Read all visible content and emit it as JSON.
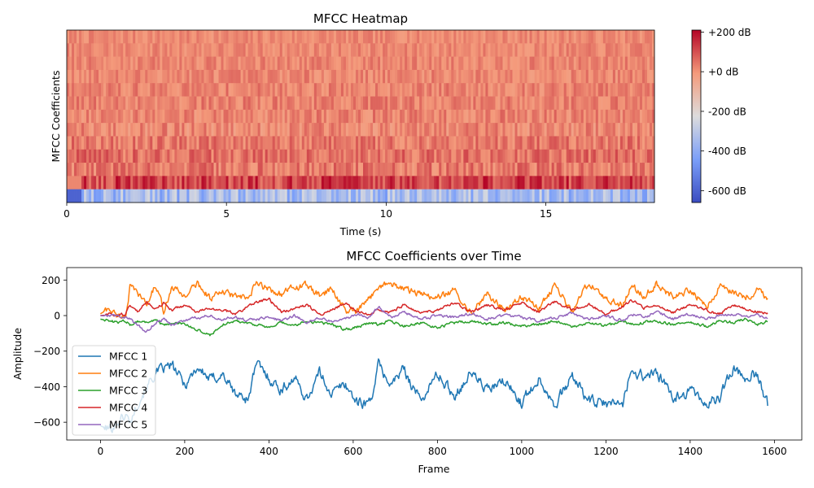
{
  "chart_data": [
    {
      "type": "heatmap",
      "title": "MFCC Heatmap",
      "xlabel": "Time (s)",
      "ylabel": "MFCC Coefficients",
      "xlim": [
        0,
        18.4
      ],
      "xticks": [
        0,
        5,
        10,
        15
      ],
      "xtick_labels": [
        "0",
        "5",
        "10",
        "15"
      ],
      "n_rows": 13,
      "n_frames": 1585,
      "colorbar": {
        "range": [
          -660,
          210
        ],
        "ticks": [
          200,
          0,
          -200,
          -400,
          -600
        ],
        "labels": [
          "+200 dB",
          "+0 dB",
          "-200 dB",
          "-400 dB",
          "-600 dB"
        ],
        "colormap": "coolwarm"
      },
      "row_levels_top_to_bottom": [
        15,
        18,
        22,
        20,
        25,
        28,
        24,
        18,
        40,
        55,
        40,
        120,
        -350
      ],
      "grid": false
    },
    {
      "type": "line",
      "title": "MFCC Coefficients over Time",
      "xlabel": "Frame",
      "ylabel": "Amplitude",
      "xlim": [
        -80,
        1665
      ],
      "ylim": [
        -700,
        270
      ],
      "xticks": [
        0,
        200,
        400,
        600,
        800,
        1000,
        1200,
        1400,
        1600
      ],
      "yticks": [
        200,
        0,
        -200,
        -400,
        -600
      ],
      "legend_position": "lower-left",
      "grid": false,
      "x": [
        0,
        20,
        40,
        60,
        70,
        90,
        110,
        130,
        150,
        170,
        200,
        230,
        260,
        290,
        320,
        350,
        370,
        400,
        430,
        460,
        490,
        520,
        550,
        580,
        610,
        640,
        660,
        690,
        720,
        760,
        800,
        840,
        880,
        920,
        960,
        1000,
        1040,
        1080,
        1120,
        1160,
        1200,
        1240,
        1260,
        1290,
        1320,
        1360,
        1400,
        1440,
        1470,
        1500,
        1530,
        1560,
        1585
      ],
      "series": [
        {
          "name": "MFCC 1",
          "color": "#1f77b4",
          "values": [
            -620,
            -640,
            -600,
            -560,
            -600,
            -480,
            -400,
            -330,
            -300,
            -280,
            -390,
            -290,
            -360,
            -330,
            -440,
            -470,
            -270,
            -350,
            -420,
            -350,
            -470,
            -320,
            -440,
            -380,
            -490,
            -490,
            -280,
            -390,
            -300,
            -480,
            -330,
            -450,
            -320,
            -420,
            -370,
            -490,
            -350,
            -500,
            -340,
            -480,
            -500,
            -490,
            -310,
            -340,
            -320,
            -470,
            -420,
            -500,
            -460,
            -300,
            -340,
            -330,
            -510
          ]
        },
        {
          "name": "MFCC 2",
          "color": "#ff7f0e",
          "values": [
            10,
            40,
            0,
            0,
            160,
            120,
            60,
            170,
            30,
            160,
            110,
            180,
            100,
            130,
            110,
            90,
            180,
            150,
            120,
            160,
            170,
            110,
            150,
            30,
            20,
            100,
            170,
            180,
            150,
            120,
            100,
            140,
            20,
            120,
            30,
            110,
            40,
            170,
            20,
            190,
            90,
            60,
            170,
            110,
            180,
            100,
            150,
            50,
            160,
            140,
            100,
            150,
            100
          ]
        },
        {
          "name": "MFCC 3",
          "color": "#2ca02c",
          "values": [
            -20,
            -30,
            -40,
            -30,
            -50,
            -30,
            -40,
            -20,
            -60,
            -40,
            -50,
            -80,
            -110,
            -50,
            -30,
            -40,
            -50,
            -70,
            -40,
            -60,
            -30,
            -40,
            -50,
            -80,
            -60,
            -40,
            -50,
            -30,
            -60,
            -40,
            -70,
            -40,
            -30,
            -50,
            -40,
            -60,
            -50,
            -30,
            -70,
            -40,
            -60,
            -30,
            -50,
            -40,
            -30,
            -50,
            -40,
            -60,
            -30,
            -40,
            -20,
            -50,
            -30
          ]
        },
        {
          "name": "MFCC 4",
          "color": "#d62728",
          "values": [
            0,
            5,
            0,
            10,
            60,
            20,
            80,
            40,
            70,
            30,
            60,
            20,
            40,
            30,
            10,
            50,
            80,
            90,
            20,
            40,
            60,
            10,
            30,
            70,
            20,
            10,
            40,
            20,
            60,
            10,
            30,
            70,
            20,
            60,
            30,
            70,
            20,
            80,
            30,
            60,
            10,
            50,
            90,
            40,
            60,
            20,
            60,
            30,
            10,
            60,
            40,
            20,
            10
          ]
        },
        {
          "name": "MFCC 5",
          "color": "#9467bd",
          "values": [
            0,
            -5,
            0,
            -10,
            -20,
            -60,
            -90,
            -40,
            -20,
            -50,
            -30,
            -10,
            0,
            -20,
            -10,
            -30,
            -20,
            -10,
            -30,
            0,
            -40,
            -10,
            -30,
            -20,
            10,
            -10,
            50,
            -10,
            20,
            -20,
            0,
            -10,
            10,
            -20,
            0,
            -10,
            -30,
            -10,
            10,
            -20,
            0,
            -30,
            10,
            -10,
            20,
            -20,
            10,
            -20,
            0,
            10,
            -10,
            0,
            -20
          ]
        }
      ]
    }
  ]
}
